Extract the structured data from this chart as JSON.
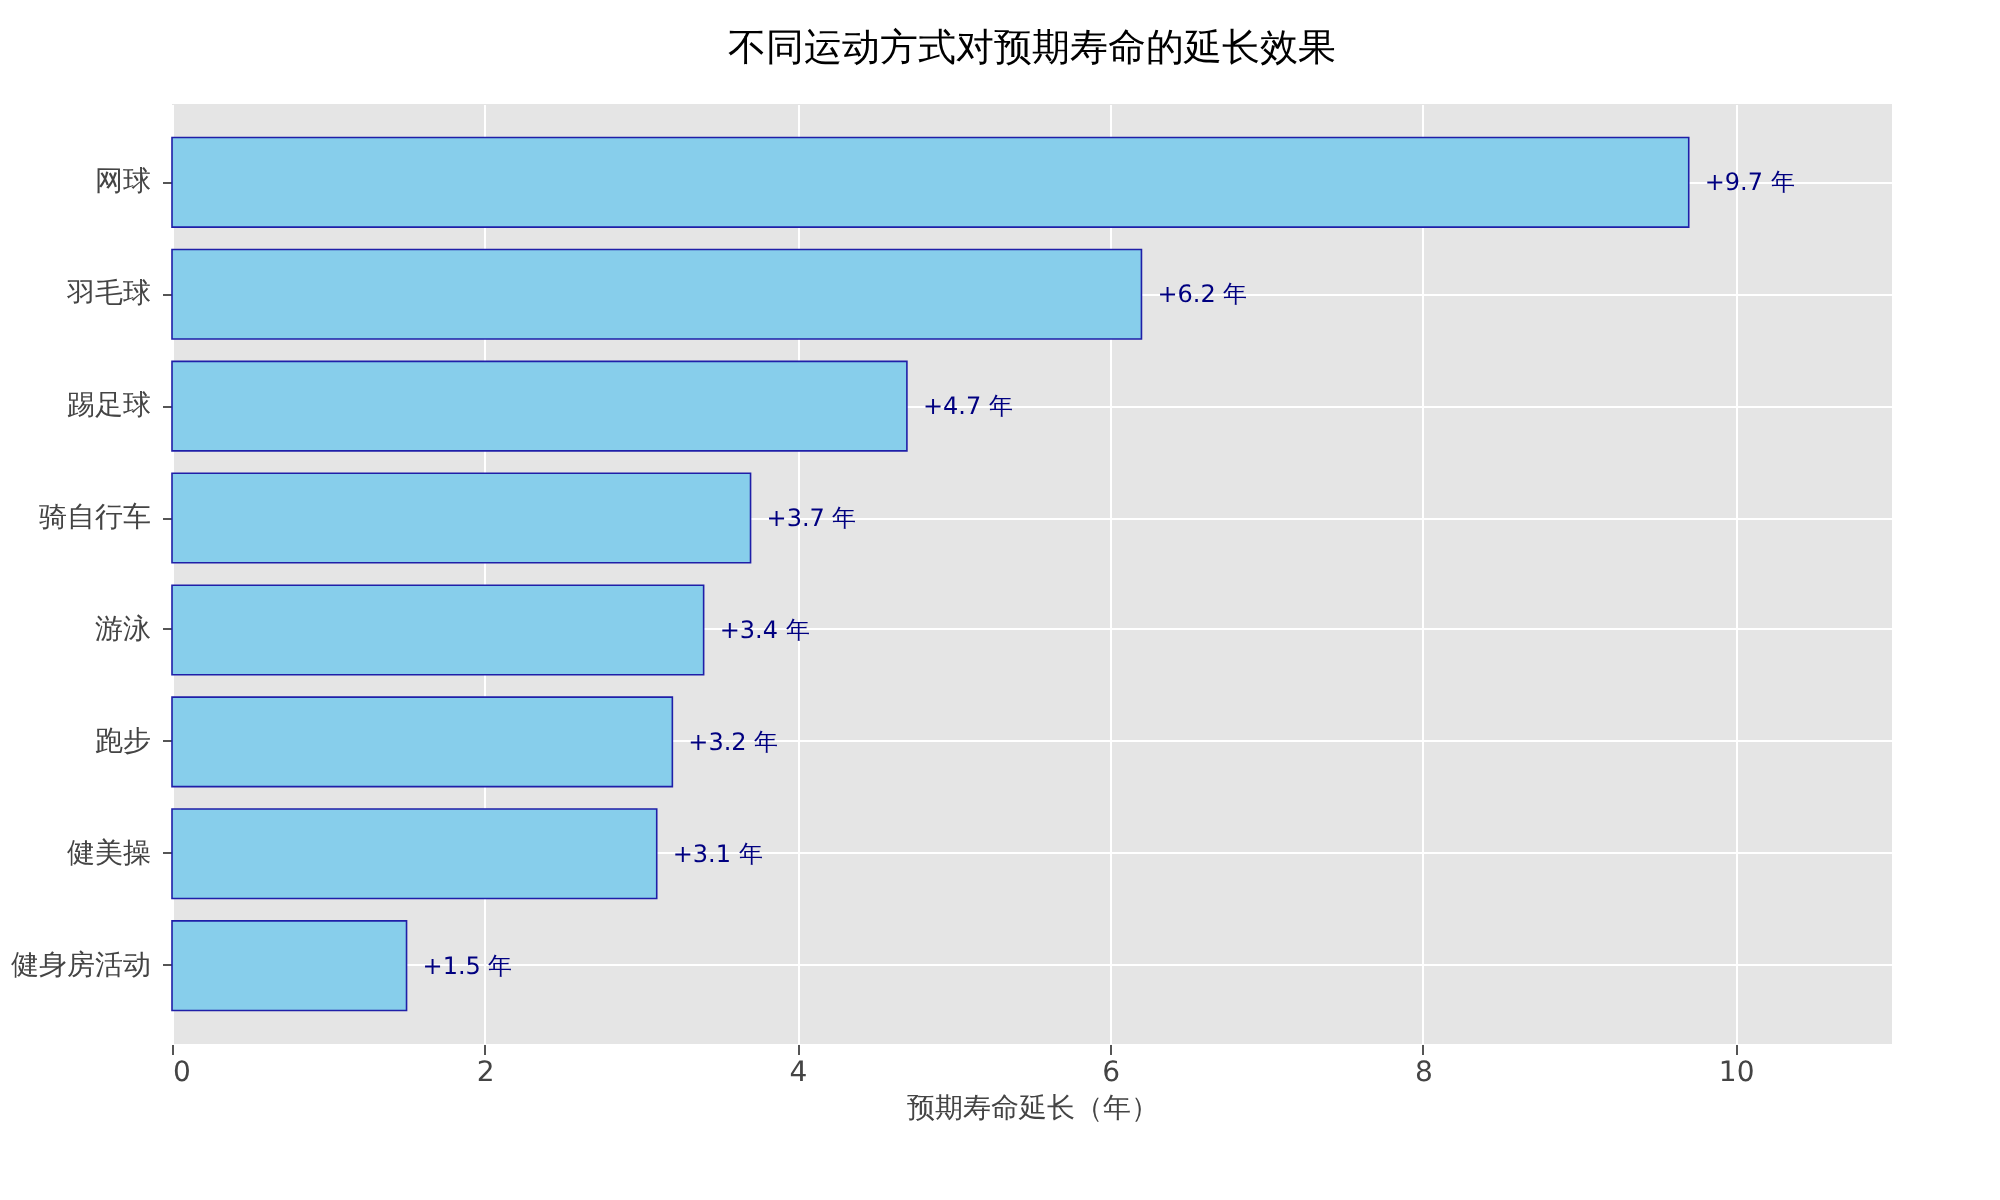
{
  "chart_data": {
    "type": "bar",
    "orientation": "horizontal",
    "title": "不同运动方式对预期寿命的延长效果",
    "xlabel": "预期寿命延长（年）",
    "categories": [
      "网球",
      "羽毛球",
      "踢足球",
      "骑自行车",
      "游泳",
      "跑步",
      "健美操",
      "健身房活动"
    ],
    "values": [
      9.7,
      6.2,
      4.7,
      3.7,
      3.4,
      3.2,
      3.1,
      1.5
    ],
    "value_labels": [
      "+9.7 年",
      "+6.2 年",
      "+4.7 年",
      "+3.7 年",
      "+3.4 年",
      "+3.2 年",
      "+3.1 年",
      "+1.5 年"
    ],
    "color": "#87ceeb",
    "xlim": [
      0,
      11
    ],
    "xticks": [
      0,
      2,
      4,
      6,
      8,
      10
    ],
    "grid": true
  }
}
